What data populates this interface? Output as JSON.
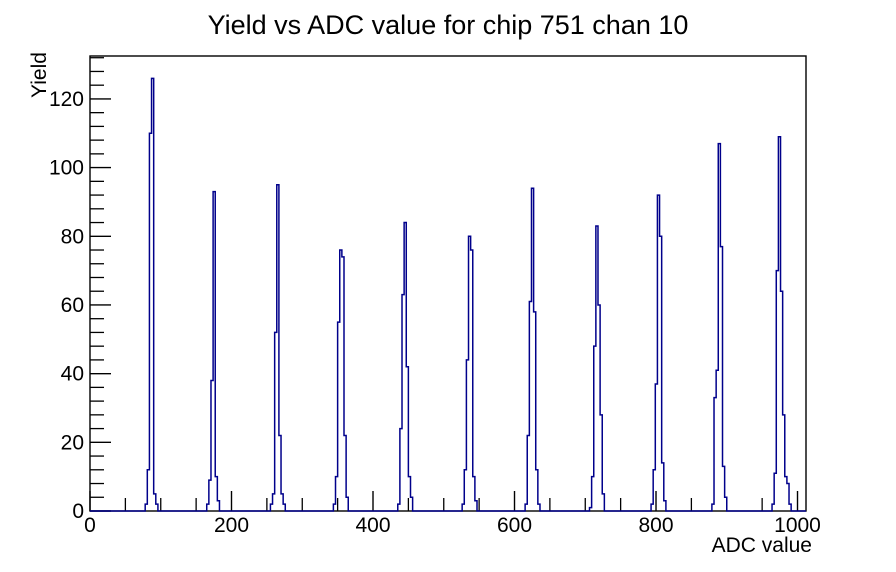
{
  "page": {
    "background": "#ffffff"
  },
  "chart_data": {
    "type": "line",
    "subtype": "histogram-step",
    "title": "Yield vs ADC value for chip 751 chan 10",
    "xlabel": "ADC value",
    "ylabel": "Yield",
    "xlim": [
      0,
      1012
    ],
    "ylim": [
      0,
      132.5
    ],
    "x_major_ticks": [
      0,
      200,
      400,
      600,
      800,
      1000
    ],
    "x_minor_step": 50,
    "y_major_ticks": [
      0,
      20,
      40,
      60,
      80,
      100,
      120
    ],
    "y_minor_step": 4,
    "grid": false,
    "legend": null,
    "line_color": "#00008b",
    "axis_color": "#000000",
    "bin_width": 3,
    "peaks": [
      {
        "adc": 88,
        "yield": 126
      },
      {
        "adc": 175,
        "yield": 93
      },
      {
        "adc": 265,
        "yield": 95
      },
      {
        "adc": 354,
        "yield": 76
      },
      {
        "adc": 445,
        "yield": 84
      },
      {
        "adc": 536,
        "yield": 80
      },
      {
        "adc": 625,
        "yield": 94
      },
      {
        "adc": 716,
        "yield": 83
      },
      {
        "adc": 803,
        "yield": 92
      },
      {
        "adc": 889,
        "yield": 107
      },
      {
        "adc": 974,
        "yield": 109
      }
    ],
    "bins": [
      [
        78,
        2
      ],
      [
        81,
        12
      ],
      [
        84,
        110
      ],
      [
        87,
        126
      ],
      [
        90,
        5
      ],
      [
        93,
        2
      ],
      [
        165,
        2
      ],
      [
        168,
        9
      ],
      [
        171,
        38
      ],
      [
        174,
        93
      ],
      [
        177,
        10
      ],
      [
        180,
        3
      ],
      [
        255,
        2
      ],
      [
        258,
        5
      ],
      [
        261,
        52
      ],
      [
        264,
        95
      ],
      [
        267,
        22
      ],
      [
        270,
        5
      ],
      [
        273,
        2
      ],
      [
        344,
        2
      ],
      [
        347,
        10
      ],
      [
        350,
        55
      ],
      [
        353,
        76
      ],
      [
        356,
        74
      ],
      [
        359,
        22
      ],
      [
        362,
        4
      ],
      [
        435,
        2
      ],
      [
        438,
        24
      ],
      [
        441,
        63
      ],
      [
        444,
        84
      ],
      [
        447,
        42
      ],
      [
        450,
        10
      ],
      [
        453,
        4
      ],
      [
        526,
        2
      ],
      [
        529,
        12
      ],
      [
        532,
        44
      ],
      [
        535,
        80
      ],
      [
        538,
        76
      ],
      [
        541,
        10
      ],
      [
        544,
        3
      ],
      [
        615,
        2
      ],
      [
        618,
        22
      ],
      [
        621,
        61
      ],
      [
        624,
        94
      ],
      [
        627,
        58
      ],
      [
        630,
        12
      ],
      [
        633,
        2
      ],
      [
        706,
        1
      ],
      [
        709,
        10
      ],
      [
        712,
        48
      ],
      [
        715,
        83
      ],
      [
        718,
        60
      ],
      [
        721,
        28
      ],
      [
        724,
        5
      ],
      [
        793,
        2
      ],
      [
        796,
        12
      ],
      [
        799,
        37
      ],
      [
        802,
        92
      ],
      [
        805,
        80
      ],
      [
        808,
        14
      ],
      [
        811,
        3
      ],
      [
        879,
        2
      ],
      [
        882,
        33
      ],
      [
        885,
        41
      ],
      [
        888,
        107
      ],
      [
        891,
        77
      ],
      [
        894,
        13
      ],
      [
        897,
        4
      ],
      [
        964,
        2
      ],
      [
        967,
        11
      ],
      [
        970,
        70
      ],
      [
        973,
        109
      ],
      [
        976,
        64
      ],
      [
        979,
        28
      ],
      [
        982,
        10
      ],
      [
        985,
        8
      ],
      [
        988,
        2
      ]
    ]
  }
}
